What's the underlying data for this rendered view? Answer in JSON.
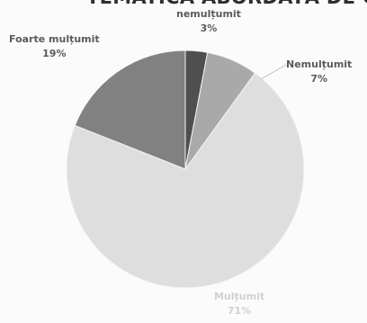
{
  "chart_data": {
    "type": "pie",
    "title": "TEMATICA ABORDATĂ DE CURSURI",
    "slices": [
      {
        "label": "nemulțumit",
        "value": 3,
        "value_text": "3%",
        "color": "#4f4f4f"
      },
      {
        "label": "Nemulțumit",
        "value": 7,
        "value_text": "7%",
        "color": "#a9a9a9"
      },
      {
        "label": "Mulțumit",
        "value": 71,
        "value_text": "71%",
        "color": "#dedede"
      },
      {
        "label": "Foarte mulțumit",
        "value": 19,
        "value_text": "19%",
        "color": "#818181"
      }
    ]
  }
}
